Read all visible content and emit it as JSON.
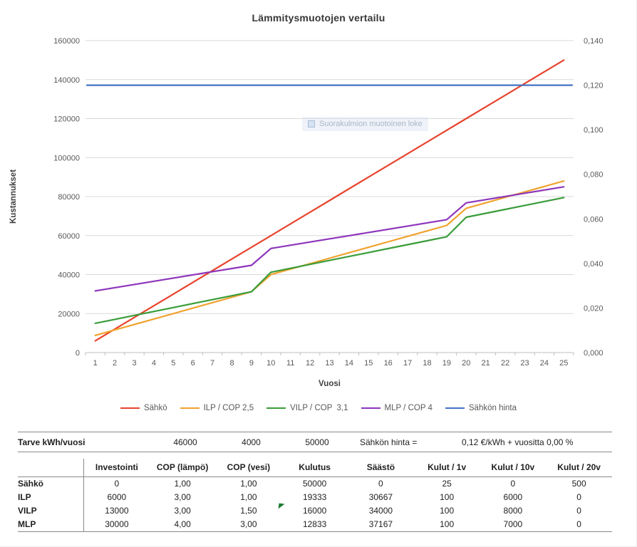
{
  "title": "Lämmitysmuotojen vertailu",
  "chart_data": {
    "type": "line",
    "x": [
      1,
      2,
      3,
      4,
      5,
      6,
      7,
      8,
      9,
      10,
      11,
      12,
      13,
      14,
      15,
      16,
      17,
      18,
      19,
      20,
      21,
      22,
      23,
      24,
      25
    ],
    "xlabel": "Vuosi",
    "ylabel": "Kustannukset",
    "left_axis": {
      "min": 0,
      "max": 160000,
      "step": 20000
    },
    "right_axis": {
      "min": 0,
      "max": 0.14,
      "step": 0.02,
      "decimals": 3,
      "decimal_separator": ","
    },
    "grid": true,
    "legend_position": "bottom",
    "series": [
      {
        "name": "Sähkö",
        "color": "#e8432c",
        "axis": "left",
        "values": [
          6000,
          12000,
          18000,
          24000,
          30000,
          36000,
          42000,
          48000,
          54000,
          60000,
          66000,
          72000,
          78000,
          84000,
          90000,
          96000,
          102000,
          108000,
          114000,
          120000,
          126000,
          132000,
          138000,
          144000,
          150000
        ]
      },
      {
        "name": "ILP / COP 2,5",
        "color": "#f0a22e",
        "axis": "left",
        "values": [
          8800,
          11600,
          14400,
          17200,
          20000,
          22800,
          25600,
          28400,
          31200,
          40000,
          42800,
          45600,
          48400,
          51200,
          54000,
          56800,
          59600,
          62400,
          65200,
          74000,
          76800,
          79600,
          82400,
          85200,
          88000
        ]
      },
      {
        "name": "VILP / COP  3,1",
        "color": "#3a9d3a",
        "axis": "left",
        "values": [
          15020,
          17040,
          19060,
          21080,
          23100,
          25120,
          27140,
          29160,
          31180,
          41200,
          43220,
          45240,
          47260,
          49280,
          51300,
          53320,
          55340,
          57360,
          59380,
          69400,
          71420,
          73440,
          75460,
          77480,
          79500
        ]
      },
      {
        "name": "MLP / COP 4",
        "color": "#8d35bb",
        "axis": "left",
        "values": [
          31640,
          33280,
          34920,
          36560,
          38200,
          39840,
          41480,
          43120,
          44760,
          53400,
          55040,
          56680,
          58320,
          59960,
          61600,
          63240,
          64880,
          66520,
          68160,
          76800,
          78440,
          80080,
          81720,
          83360,
          85000
        ]
      },
      {
        "name": "Sähkön hinta",
        "color": "#4472c4",
        "axis": "right",
        "values": [
          0.12,
          0.12,
          0.12,
          0.12,
          0.12,
          0.12,
          0.12,
          0.12,
          0.12,
          0.12,
          0.12,
          0.12,
          0.12,
          0.12,
          0.12,
          0.12,
          0.12,
          0.12,
          0.12,
          0.12,
          0.12,
          0.12,
          0.12,
          0.12,
          0.12
        ]
      }
    ]
  },
  "overlay": {
    "text": "Suorakulmion muotoinen loke"
  },
  "summary": {
    "label": "Tarve kWh/vuosi",
    "values": [
      "46000",
      "4000",
      "50000"
    ],
    "price_label": "Sähkön hinta =",
    "price_value": "0,12 €/kWh + vuositta 0,00 %"
  },
  "table": {
    "columns": [
      "Investointi",
      "COP (lämpö)",
      "COP (vesi)",
      "Kulutus",
      "Säästö",
      "Kulut / 1v",
      "Kulut / 10v",
      "Kulut / 20v"
    ],
    "rows": [
      {
        "label": "Sähkö",
        "values": [
          "0",
          "1,00",
          "1,00",
          "50000",
          "0",
          "25",
          "0",
          "500"
        ]
      },
      {
        "label": "ILP",
        "values": [
          "6000",
          "3,00",
          "1,00",
          "19333",
          "30667",
          "100",
          "6000",
          "0"
        ]
      },
      {
        "label": "VILP",
        "values": [
          "13000",
          "3,00",
          "1,50",
          "16000",
          "34000",
          "100",
          "8000",
          "0"
        ]
      },
      {
        "label": "MLP",
        "values": [
          "30000",
          "4,00",
          "3,00",
          "12833",
          "37167",
          "100",
          "7000",
          "0"
        ]
      }
    ]
  }
}
